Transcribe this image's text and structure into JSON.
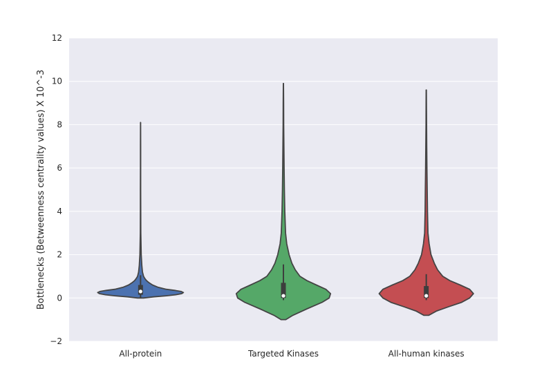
{
  "chart_data": {
    "type": "violin",
    "title": "",
    "xlabel": "",
    "ylabel": "Bottlenecks (Betweenness centrality values) X 10^-3",
    "ylim": [
      -2,
      12
    ],
    "yticks": [
      -2,
      0,
      2,
      4,
      6,
      8,
      10,
      12
    ],
    "ytick_labels": [
      "−2",
      "0",
      "2",
      "4",
      "6",
      "8",
      "10",
      "12"
    ],
    "grid": true,
    "background": "#EAEAF2",
    "categories": [
      "All-protein",
      "Targeted Kinases",
      "All-human kinases"
    ],
    "violins": [
      {
        "category": "All-protein",
        "color": "#4C72B0",
        "min": 0.0,
        "max": 8.1,
        "q1": 0.15,
        "median": 0.3,
        "q3": 0.6,
        "whisker_low": 0.0,
        "whisker_high": 1.05,
        "density": [
          [
            0.0,
            0.07
          ],
          [
            0.05,
            0.3
          ],
          [
            0.1,
            0.6
          ],
          [
            0.15,
            0.82
          ],
          [
            0.2,
            0.96
          ],
          [
            0.25,
            1.0
          ],
          [
            0.3,
            0.95
          ],
          [
            0.35,
            0.8
          ],
          [
            0.4,
            0.6
          ],
          [
            0.5,
            0.4
          ],
          [
            0.6,
            0.28
          ],
          [
            0.7,
            0.2
          ],
          [
            0.8,
            0.14
          ],
          [
            0.9,
            0.1
          ],
          [
            1.0,
            0.07
          ],
          [
            1.2,
            0.045
          ],
          [
            1.5,
            0.03
          ],
          [
            2.0,
            0.015
          ],
          [
            2.5,
            0.01
          ],
          [
            3.0,
            0.006
          ],
          [
            4.0,
            0.004
          ],
          [
            5.0,
            0.003
          ],
          [
            6.0,
            0.002
          ],
          [
            7.0,
            0.002
          ],
          [
            8.1,
            0.001
          ]
        ],
        "max_halfwidth": 0.3
      },
      {
        "category": "Targeted Kinases",
        "color": "#55A868",
        "min": -1.0,
        "max": 9.9,
        "q1": 0.0,
        "median": 0.1,
        "q3": 0.7,
        "whisker_low": -0.1,
        "whisker_high": 1.55,
        "density": [
          [
            -1.0,
            0.05
          ],
          [
            -0.8,
            0.2
          ],
          [
            -0.5,
            0.5
          ],
          [
            -0.2,
            0.82
          ],
          [
            0.0,
            0.97
          ],
          [
            0.2,
            1.0
          ],
          [
            0.4,
            0.9
          ],
          [
            0.6,
            0.7
          ],
          [
            0.8,
            0.5
          ],
          [
            1.0,
            0.35
          ],
          [
            1.3,
            0.25
          ],
          [
            1.6,
            0.18
          ],
          [
            2.0,
            0.12
          ],
          [
            2.5,
            0.07
          ],
          [
            3.0,
            0.045
          ],
          [
            4.0,
            0.03
          ],
          [
            5.0,
            0.02
          ],
          [
            6.0,
            0.014
          ],
          [
            7.0,
            0.01
          ],
          [
            8.0,
            0.006
          ],
          [
            9.0,
            0.004
          ],
          [
            9.9,
            0.002
          ]
        ],
        "max_halfwidth": 0.33
      },
      {
        "category": "All-human kinases",
        "color": "#C44E52",
        "min": -0.8,
        "max": 9.6,
        "q1": 0.0,
        "median": 0.1,
        "q3": 0.55,
        "whisker_low": -0.1,
        "whisker_high": 1.1,
        "density": [
          [
            -0.8,
            0.05
          ],
          [
            -0.6,
            0.22
          ],
          [
            -0.4,
            0.48
          ],
          [
            -0.2,
            0.75
          ],
          [
            0.0,
            0.92
          ],
          [
            0.2,
            1.0
          ],
          [
            0.4,
            0.92
          ],
          [
            0.6,
            0.72
          ],
          [
            0.8,
            0.5
          ],
          [
            1.0,
            0.35
          ],
          [
            1.3,
            0.24
          ],
          [
            1.6,
            0.17
          ],
          [
            2.0,
            0.1
          ],
          [
            2.5,
            0.06
          ],
          [
            3.0,
            0.035
          ],
          [
            4.0,
            0.025
          ],
          [
            5.0,
            0.02
          ],
          [
            6.0,
            0.014
          ],
          [
            7.0,
            0.01
          ],
          [
            8.0,
            0.006
          ],
          [
            9.0,
            0.004
          ],
          [
            9.6,
            0.002
          ]
        ],
        "max_halfwidth": 0.33
      }
    ]
  }
}
